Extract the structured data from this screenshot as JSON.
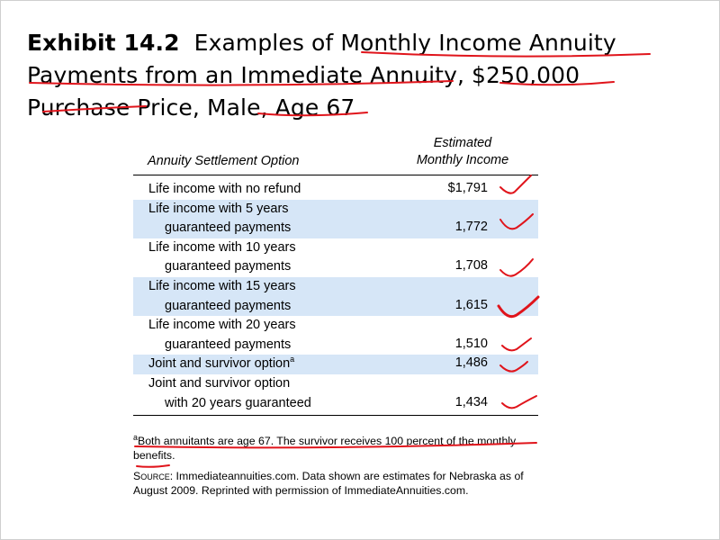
{
  "exhibit": {
    "label": "Exhibit 14.2",
    "title_line1": "Examples of Monthly Income Annuity",
    "title_line2": "Payments from an Immediate Annuity, $250,000",
    "title_line3": "Purchase Price, Male, Age 67"
  },
  "table": {
    "col1_header": "Annuity Settlement Option",
    "col2_header_line1": "Estimated",
    "col2_header_line2": "Monthly Income",
    "rows": [
      {
        "line1": "Life income with no refund",
        "line2": "",
        "value": "$1,791",
        "shaded": false
      },
      {
        "line1": "Life income with 5 years",
        "line2": "guaranteed payments",
        "value": "1,772",
        "shaded": true
      },
      {
        "line1": "Life income with 10 years",
        "line2": "guaranteed payments",
        "value": "1,708",
        "shaded": false
      },
      {
        "line1": "Life income with 15 years",
        "line2": "guaranteed payments",
        "value": "1,615",
        "shaded": true
      },
      {
        "line1": "Life income with 20 years",
        "line2": "guaranteed payments",
        "value": "1,510",
        "shaded": false
      },
      {
        "line1": "Joint and survivor option",
        "sup": "a",
        "line2": "",
        "value": "1,486",
        "shaded": true
      },
      {
        "line1": "Joint and survivor option",
        "line2": "with 20 years guaranteed",
        "value": "1,434",
        "shaded": false
      }
    ]
  },
  "notes": {
    "footnote_marker": "a",
    "footnote_text": "Both annuitants are age 67. The survivor receives 100 percent of the monthly benefits.",
    "source_label": "Source:",
    "source_text": "Immediateannuities.com. Data shown are estimates for Nebraska as of August 2009. Reprinted with permission of ImmediateAnnuities.com."
  },
  "colors": {
    "row_shade": "#d6e6f7",
    "pen_red": "#e0141b"
  }
}
